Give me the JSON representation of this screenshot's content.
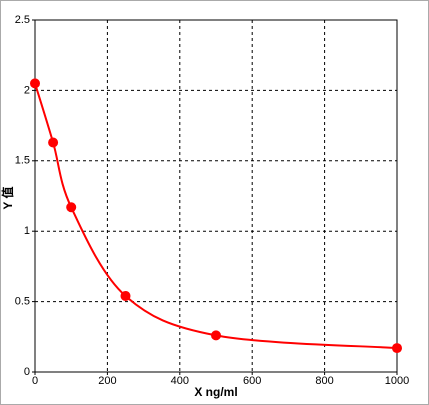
{
  "chart_data": {
    "type": "scatter",
    "xlabel": "X ng/ml",
    "ylabel": "Y 值",
    "x": [
      0,
      50,
      100,
      250,
      500,
      1000
    ],
    "values": [
      2.05,
      1.63,
      1.17,
      0.54,
      0.26,
      0.17
    ],
    "color": "#ff0000",
    "curve": "smooth",
    "xlim": [
      0,
      1000
    ],
    "xticks": [
      0,
      200,
      400,
      600,
      800,
      1000
    ],
    "ylim": [
      0,
      2.5
    ],
    "yticks": [
      0,
      0.5,
      1,
      1.5,
      2,
      2.5
    ],
    "grid": true
  }
}
